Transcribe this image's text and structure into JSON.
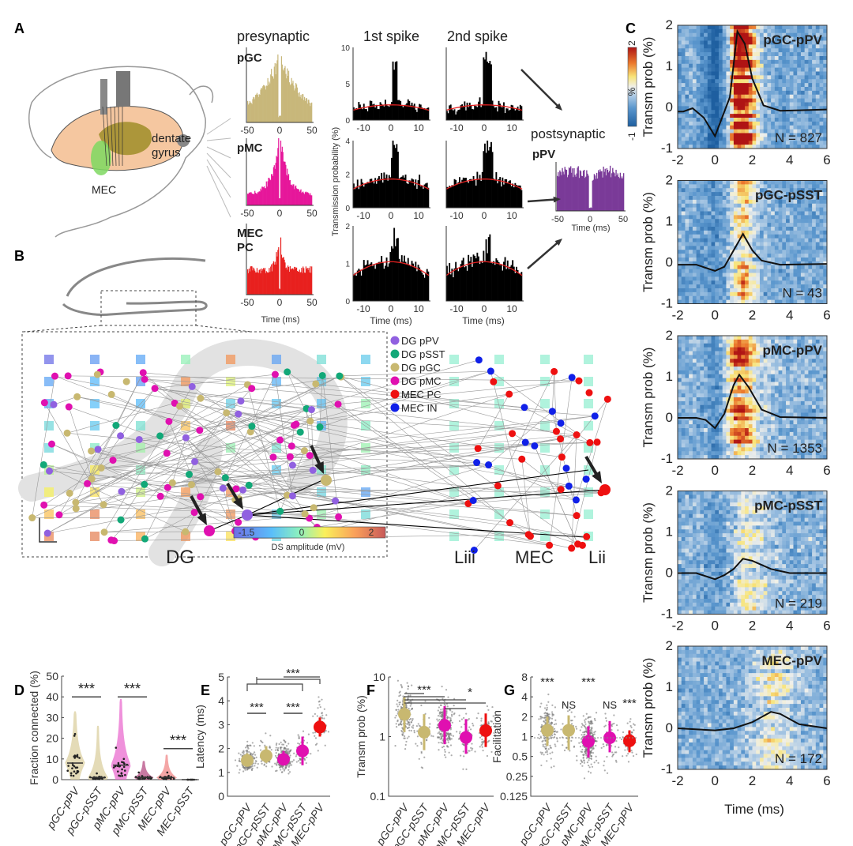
{
  "panel_letters": [
    "A",
    "B",
    "C",
    "D",
    "E",
    "F",
    "G"
  ],
  "panel_a": {
    "presynaptic_title": "presynaptic",
    "postsynaptic_title": "postsynaptic",
    "col_titles": [
      "1st spike",
      "2nd spike"
    ],
    "pre_labels": [
      "pGC",
      "pMC",
      "MEC",
      "PC"
    ],
    "post_label": "pPV",
    "time_label": "Time (ms)",
    "ylabel": "Transmission probability (%)",
    "pre_ticks": [
      "-50",
      "0",
      "50"
    ],
    "ccg_ticks": [
      "-10",
      "0",
      "10"
    ],
    "ccg_yticks": [
      [
        "10",
        "5",
        "0"
      ],
      [
        "4",
        "2",
        "0"
      ],
      [
        "2",
        "1",
        "0"
      ]
    ],
    "brain_labels": [
      "dentate",
      "gyrus",
      "MEC"
    ],
    "colors": {
      "pGC": "#c8b77a",
      "pMC": "#e6169a",
      "MEC": "#e8201e",
      "pPV": "#7a3a98"
    }
  },
  "panel_b": {
    "legend": [
      {
        "label": "DG pPV",
        "color": "#9060e0"
      },
      {
        "label": "DG pSST",
        "color": "#12a878"
      },
      {
        "label": "DG pGC",
        "color": "#c8b870"
      },
      {
        "label": "DG pMC",
        "color": "#e010b0"
      },
      {
        "label": "MEC PC",
        "color": "#ee1010"
      },
      {
        "label": "MEC IN",
        "color": "#1020e8"
      }
    ],
    "region_labels": [
      "DG",
      "Liii",
      "MEC",
      "Lii"
    ],
    "colorbar": {
      "ticks": [
        "-1.5",
        "0",
        "2"
      ],
      "label": "DS amplitude (mV)"
    }
  },
  "chart_data": [
    {
      "id": "C",
      "type": "heatmap",
      "ylabel": "Transm prob (%)",
      "xlabel": "Time (ms)",
      "xlim": [
        -2,
        6
      ],
      "ylim": [
        -1,
        2
      ],
      "xticks": [
        "-2",
        "0",
        "2",
        "4",
        "6"
      ],
      "yticks": [
        "2",
        "1",
        "0",
        "-1"
      ],
      "colorbar": {
        "ticks": [
          "2",
          "%",
          "-1"
        ]
      },
      "panels": [
        {
          "title": "pGC-pPV",
          "n_label": "N = 827",
          "curve": [
            [
              -2,
              -0.1
            ],
            [
              -1.7,
              -0.1
            ],
            [
              -1.2,
              -0.02
            ],
            [
              -0.6,
              -0.25
            ],
            [
              0,
              -0.7
            ],
            [
              0.8,
              0.25
            ],
            [
              1.2,
              1.85
            ],
            [
              1.6,
              1.55
            ],
            [
              2,
              0.7
            ],
            [
              2.6,
              0.05
            ],
            [
              3.5,
              -0.08
            ],
            [
              4.5,
              -0.07
            ],
            [
              6,
              -0.05
            ]
          ]
        },
        {
          "title": "pGC-pSST",
          "n_label": "N = 43",
          "curve": [
            [
              -2,
              -0.05
            ],
            [
              -1,
              -0.05
            ],
            [
              0,
              -0.2
            ],
            [
              0.5,
              -0.1
            ],
            [
              1,
              0.3
            ],
            [
              1.5,
              0.7
            ],
            [
              2,
              0.3
            ],
            [
              2.5,
              0.05
            ],
            [
              3.5,
              -0.05
            ],
            [
              6,
              -0.03
            ]
          ]
        },
        {
          "title": "pMC-pPV",
          "n_label": "N = 1353",
          "curve": [
            [
              -2,
              0
            ],
            [
              -1,
              0
            ],
            [
              -0.5,
              -0.05
            ],
            [
              0,
              -0.25
            ],
            [
              0.5,
              0.1
            ],
            [
              1,
              0.8
            ],
            [
              1.3,
              1.05
            ],
            [
              1.8,
              0.75
            ],
            [
              2.5,
              0.2
            ],
            [
              3.5,
              0.02
            ],
            [
              6,
              0
            ]
          ]
        },
        {
          "title": "pMC-pSST",
          "n_label": "N = 219",
          "curve": [
            [
              -2,
              0
            ],
            [
              -1,
              0
            ],
            [
              0,
              -0.15
            ],
            [
              0.5,
              -0.05
            ],
            [
              1,
              0.1
            ],
            [
              1.5,
              0.35
            ],
            [
              2,
              0.3
            ],
            [
              3,
              0.1
            ],
            [
              4,
              0
            ],
            [
              6,
              0
            ]
          ]
        },
        {
          "title": "MEC-pPV",
          "n_label": "N = 172",
          "curve": [
            [
              -2,
              0
            ],
            [
              0,
              -0.05
            ],
            [
              1,
              0
            ],
            [
              2,
              0.15
            ],
            [
              3,
              0.4
            ],
            [
              3.5,
              0.35
            ],
            [
              4.5,
              0.1
            ],
            [
              6,
              0
            ]
          ]
        }
      ]
    },
    {
      "id": "D",
      "type": "violin",
      "ylabel": "Fraction connected (%)",
      "ylim": [
        0,
        50
      ],
      "yticks": [
        "50",
        "40",
        "30",
        "20",
        "10",
        "0"
      ],
      "categories": [
        "pGC-pPV",
        "pGC-pSST",
        "pMC-pPV",
        "pMC-pSST",
        "MEC-pPV",
        "MEC-pSST"
      ],
      "medians": [
        8,
        1,
        7,
        1,
        1,
        0
      ],
      "max": [
        33,
        26,
        39,
        9,
        12,
        0
      ],
      "colors": [
        "#d8cc98",
        "#d8cc98",
        "#e862cc",
        "#b0407a",
        "#f08080",
        "#888888"
      ],
      "significance": [
        {
          "pair": [
            0,
            1
          ],
          "label": "***",
          "level": 40
        },
        {
          "pair": [
            2,
            3
          ],
          "label": "***",
          "level": 40
        },
        {
          "pair": [
            4,
            5
          ],
          "label": "***",
          "level": 15
        }
      ]
    },
    {
      "id": "E",
      "type": "scatter",
      "ylabel": "Latency (ms)",
      "ylim": [
        0,
        5
      ],
      "yticks": [
        "5",
        "4",
        "3",
        "2",
        "1",
        "0"
      ],
      "categories": [
        "pGC-pPV",
        "pGC-pSST",
        "pMC-pPV",
        "pMC-pSST",
        "MEC-pPV"
      ],
      "values": [
        1.5,
        1.7,
        1.55,
        1.9,
        2.9
      ],
      "err": [
        [
          1.3,
          1.8
        ],
        [
          1.4,
          2.1
        ],
        [
          1.3,
          1.9
        ],
        [
          1.3,
          2.5
        ],
        [
          2.5,
          3.3
        ]
      ],
      "colors": [
        "#c8b870",
        "#c8b870",
        "#e010b0",
        "#e010b0",
        "#ee1010"
      ],
      "significance": [
        {
          "pair": [
            0,
            1
          ],
          "label": "***"
        },
        {
          "pair": [
            2,
            3
          ],
          "label": "***"
        },
        {
          "label": "***"
        }
      ]
    },
    {
      "id": "F",
      "type": "scatter",
      "ylabel": "Transm prob (%)",
      "scale": "log",
      "ylim": [
        0.1,
        20
      ],
      "yticks": [
        "10",
        "1",
        "0.1"
      ],
      "categories": [
        "pGC-pPV",
        "pGC-pSST",
        "pMC-pPV",
        "pMC-pSST",
        "MEC-pPV"
      ],
      "values": [
        3.2,
        1.5,
        2.0,
        1.2,
        1.6
      ],
      "err": [
        [
          1.5,
          6.5
        ],
        [
          0.7,
          3.2
        ],
        [
          0.9,
          4.5
        ],
        [
          0.6,
          2.6
        ],
        [
          0.8,
          3.3
        ]
      ],
      "colors": [
        "#c8b870",
        "#c8b870",
        "#e010b0",
        "#e010b0",
        "#ee1010"
      ],
      "significance": [
        {
          "label": "***"
        },
        {
          "label": "*"
        }
      ]
    },
    {
      "id": "G",
      "type": "scatter",
      "ylabel": "Facilitation",
      "scale": "log2",
      "ylim": [
        0.125,
        8
      ],
      "yticks": [
        "8",
        "4",
        "2",
        "1",
        "0.5",
        "0.25",
        "0.125"
      ],
      "categories": [
        "pGC-pPV",
        "pGC-pSST",
        "pMC-pPV",
        "pMC-pSST",
        "MEC-pPV"
      ],
      "values": [
        1.3,
        1.3,
        0.88,
        1.0,
        0.9
      ],
      "err": [
        [
          0.75,
          2.1
        ],
        [
          0.65,
          2.2
        ],
        [
          0.5,
          1.5
        ],
        [
          0.6,
          1.8
        ],
        [
          0.6,
          1.3
        ]
      ],
      "colors": [
        "#c8b870",
        "#c8b870",
        "#e010b0",
        "#e010b0",
        "#ee1010"
      ],
      "significance_labels": [
        "***",
        "NS",
        "***",
        "NS",
        "***"
      ]
    }
  ]
}
